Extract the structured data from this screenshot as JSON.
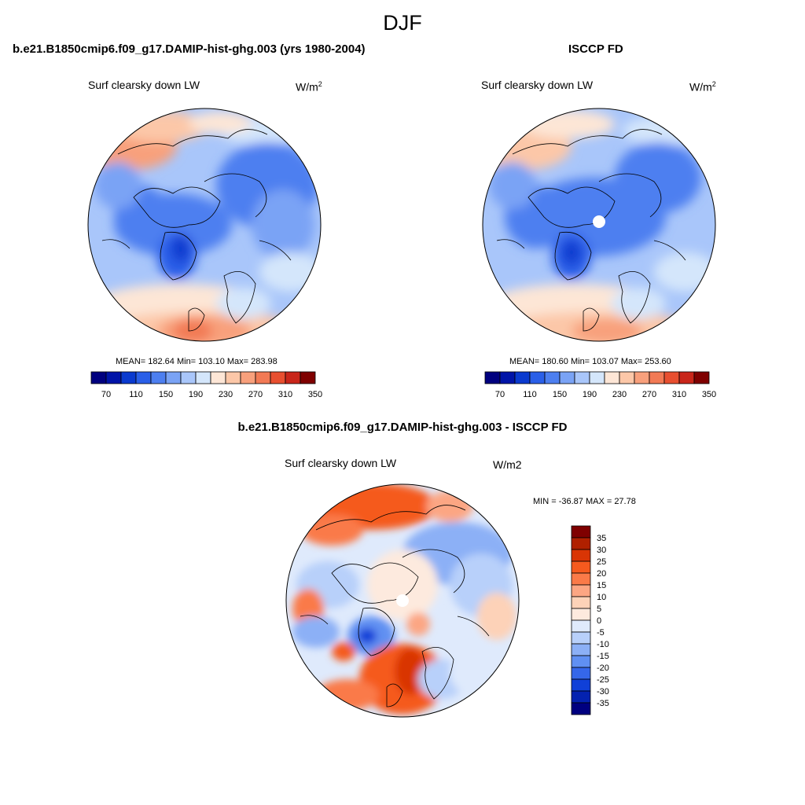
{
  "title": "DJF",
  "panels": [
    {
      "id": "model",
      "title": "b.e21.B1850cmip6.f09_g17.DAMIP-hist-ghg.003 (yrs 1980-2004)",
      "variable": "Surf clearsky down LW",
      "units_base": "W/m",
      "units_exp": "2",
      "stats": "MEAN= 182.64  Min= 103.10  Max= 283.98",
      "colorbar_labels": [
        "70",
        "110",
        "150",
        "190",
        "230",
        "270",
        "310",
        "350"
      ]
    },
    {
      "id": "obs",
      "title": "ISCCP FD",
      "variable": "Surf clearsky down LW",
      "units_base": "W/m",
      "units_exp": "2",
      "stats": "MEAN= 180.60  Min= 103.07  Max= 253.60",
      "colorbar_labels": [
        "70",
        "110",
        "150",
        "190",
        "230",
        "270",
        "310",
        "350"
      ]
    },
    {
      "id": "diff",
      "title": "b.e21.B1850cmip6.f09_g17.DAMIP-hist-ghg.003 - ISCCP FD",
      "variable": "Surf clearsky down LW",
      "units": "W/m2",
      "stats": "MIN = -36.87 MAX =  27.78",
      "colorbar_labels": [
        "35",
        "30",
        "25",
        "20",
        "15",
        "10",
        "5",
        "0",
        "-5",
        "-10",
        "-15",
        "-20",
        "-25",
        "-30",
        "-35"
      ]
    }
  ],
  "colors": {
    "abs_colorbar": [
      "#00007f",
      "#0014a8",
      "#0a3acf",
      "#2a5fe8",
      "#4d7ff0",
      "#7aa3f5",
      "#a9c6fa",
      "#d4e6fb",
      "#fde6d6",
      "#fcc7a8",
      "#f8a07c",
      "#f27a55",
      "#e84f30",
      "#c9261a",
      "#7f0000"
    ],
    "diff_colorbar": [
      "#7f0000",
      "#b02000",
      "#d93505",
      "#f55a1e",
      "#fa7a48",
      "#fca683",
      "#fdd2b8",
      "#fdeade",
      "#dfeafc",
      "#b8d0fa",
      "#8cb0f6",
      "#6090f2",
      "#3567ea",
      "#1040d8",
      "#0422b0",
      "#000080"
    ]
  }
}
